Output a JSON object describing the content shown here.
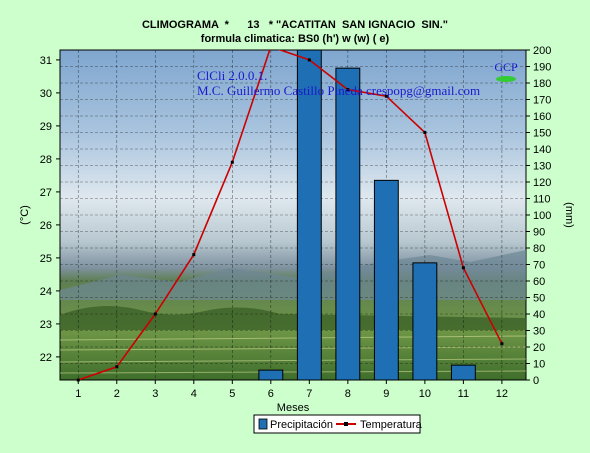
{
  "title_line1": "CLIMOGRAMA  *      13   * \"ACATITAN  SAN IGNACIO  SIN.\"",
  "title_line2": "formula climatica: BS0 (h') w (w) ( e)",
  "watermark": {
    "line1": "ClCli 2.0.0.1.",
    "line2": "M.C. Guillermo Castillo Pineda  crespopg@gmail.com",
    "logo": "GCP"
  },
  "chart_data": {
    "type": "bar+line",
    "xlabel": "Meses",
    "ylabel_left": "(°C)",
    "ylabel_right": "(mm)",
    "categories": [
      "1",
      "2",
      "3",
      "4",
      "5",
      "6",
      "7",
      "8",
      "9",
      "10",
      "11",
      "12"
    ],
    "ylim_left": [
      21.3,
      31.3
    ],
    "ylim_right": [
      0,
      200
    ],
    "yticks_left": [
      22,
      23,
      24,
      25,
      26,
      27,
      28,
      29,
      30,
      31
    ],
    "yticks_right": [
      0,
      10,
      20,
      30,
      40,
      50,
      60,
      70,
      80,
      90,
      100,
      110,
      120,
      130,
      140,
      150,
      160,
      170,
      180,
      190,
      200
    ],
    "grid": true,
    "legend_position": "bottom-center",
    "series": [
      {
        "name": "Precipitación",
        "kind": "bar",
        "axis": "right",
        "color": "#1f6fb5",
        "values": [
          0,
          0,
          0,
          0,
          0,
          6,
          200,
          189,
          121,
          71,
          9,
          0
        ]
      },
      {
        "name": "Temperatura",
        "kind": "line",
        "axis": "left",
        "color": "#cc0000",
        "values": [
          21.3,
          21.7,
          23.3,
          25.1,
          27.9,
          31.4,
          31.0,
          30.1,
          29.9,
          28.8,
          24.7,
          22.4
        ]
      }
    ]
  }
}
